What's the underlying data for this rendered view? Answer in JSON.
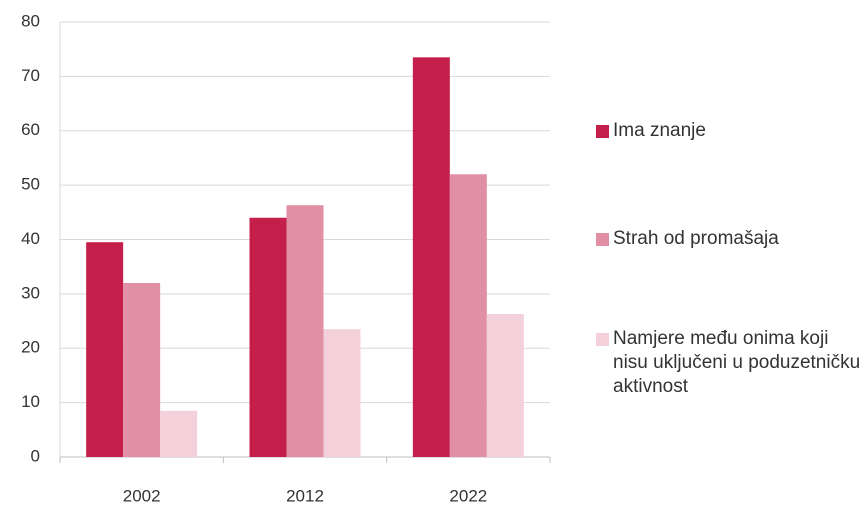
{
  "chart_data": {
    "type": "bar",
    "categories": [
      "2002",
      "2012",
      "2022"
    ],
    "series": [
      {
        "name": "Ima znanje",
        "color": "#c41e4a",
        "values": [
          39.5,
          44,
          73.5
        ]
      },
      {
        "name": "Strah od promašaja",
        "color": "#e08fa4",
        "values": [
          32,
          46.3,
          52
        ]
      },
      {
        "name": "Namjere među onima koji nisu uključeni u poduzetničku aktivnost",
        "color": "#f4d0da",
        "values": [
          8.5,
          23.5,
          26.3
        ]
      }
    ],
    "ylim": [
      0,
      80
    ],
    "yticks": [
      0,
      10,
      20,
      30,
      40,
      50,
      60,
      70,
      80
    ],
    "grid": true,
    "legend": "right"
  }
}
